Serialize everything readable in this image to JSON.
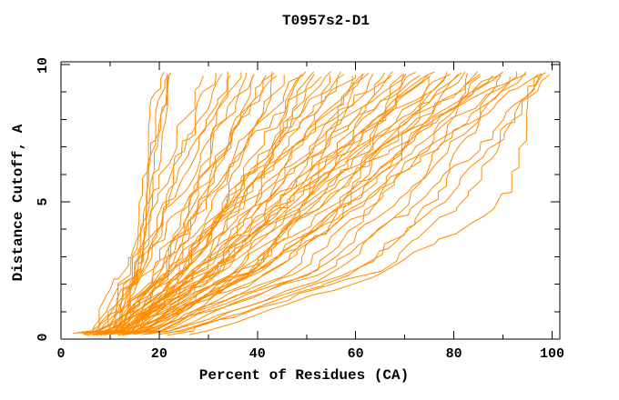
{
  "window": {
    "background": "#ffffff"
  },
  "chart_data": {
    "type": "line",
    "title": "T0957s2-D1",
    "xlabel": "Percent of Residues (CA)",
    "ylabel": "Distance Cutoff, A",
    "xlim": [
      0,
      100
    ],
    "ylim": [
      0,
      10
    ],
    "grid": "off",
    "legend": "none",
    "axis_color": "#000000",
    "line_color": "#ff8c00",
    "x_tick_labels": [
      "0",
      "20",
      "40",
      "60",
      "80",
      "100"
    ],
    "x_major_ticks": [
      0,
      20,
      40,
      60,
      80,
      100
    ],
    "x_minor_ticks": [
      10,
      30,
      50,
      70,
      90
    ],
    "y_tick_labels": [
      "0",
      "5",
      "10"
    ],
    "y_major_ticks": [
      0,
      5,
      10
    ],
    "y_minor_ticks": [
      1,
      2,
      3,
      4,
      6,
      7,
      8,
      9
    ],
    "series_description": "One monotone curve per predicted model: percent of CA residues (x) fitting under each distance cutoff in Angstroms (y). Each curve is listed as x-percent sampled at anchor cutoffs plus a jitter seed.",
    "curve_anchor_y": [
      0.3,
      2.5,
      5.0,
      7.5,
      9.7
    ],
    "curves": [
      [
        10.5,
        14,
        16,
        18,
        20,
        11
      ],
      [
        11,
        14.5,
        16.5,
        18.5,
        20.6,
        12
      ],
      [
        11.5,
        15,
        17,
        19,
        21.2,
        13
      ],
      [
        12,
        15.5,
        17.5,
        19.6,
        21.9,
        14
      ],
      [
        12.5,
        16,
        18.2,
        20.3,
        22.6,
        15
      ],
      [
        7,
        12.1,
        17.4,
        23.6,
        30,
        21
      ],
      [
        9,
        15.6,
        21.1,
        26.2,
        31,
        22
      ],
      [
        8,
        13.5,
        19.3,
        26,
        33,
        23
      ],
      [
        11,
        21.4,
        26.6,
        30.8,
        34,
        24
      ],
      [
        6,
        14.7,
        22,
        28.6,
        35,
        25
      ],
      [
        10,
        15.7,
        21.7,
        28.7,
        36,
        26
      ],
      [
        12,
        19.8,
        26.3,
        32.3,
        38,
        27
      ],
      [
        8,
        22,
        29.1,
        34.7,
        39,
        28
      ],
      [
        9,
        15.8,
        22.9,
        31.3,
        40,
        29
      ],
      [
        13,
        21.4,
        28.4,
        34.8,
        41,
        30
      ],
      [
        7,
        17.8,
        26.8,
        35.1,
        43,
        31
      ],
      [
        10,
        25.3,
        33.1,
        39.2,
        44,
        32
      ],
      [
        8,
        16.1,
        24.7,
        34.6,
        45,
        33
      ],
      [
        12,
        22.2,
        30.7,
        38.5,
        46,
        34
      ],
      [
        9,
        30.5,
        39.4,
        44.1,
        48,
        35
      ],
      [
        11,
        19.4,
        28.1,
        38.4,
        49,
        36
      ],
      [
        14,
        24.8,
        33.8,
        42.1,
        50,
        37
      ],
      [
        8,
        27.4,
        37.2,
        45,
        51,
        38
      ],
      [
        10,
        19.2,
        28.9,
        40.2,
        52,
        39
      ],
      [
        13,
        25,
        35,
        44.2,
        53,
        40
      ],
      [
        9,
        22.8,
        34.3,
        44.9,
        55,
        41
      ],
      [
        12,
        31.8,
        41.9,
        49.8,
        56,
        42
      ],
      [
        15,
        24.2,
        33.9,
        45.2,
        57,
        43
      ],
      [
        10,
        24.4,
        36.4,
        47.4,
        58,
        44
      ],
      [
        16,
        39.7,
        49.5,
        54.7,
        59,
        45
      ],
      [
        11,
        21.8,
        33.1,
        46.3,
        60,
        46
      ],
      [
        13,
        27.4,
        39.4,
        50.4,
        61,
        47
      ],
      [
        9,
        32.9,
        45,
        54.6,
        62,
        48
      ],
      [
        14,
        24.8,
        36.1,
        49.3,
        63,
        49
      ],
      [
        12,
        27.9,
        41.2,
        53.3,
        65,
        50
      ],
      [
        17,
        39.1,
        50.3,
        59.1,
        66,
        51
      ],
      [
        10,
        22.5,
        35.7,
        51,
        67,
        52
      ],
      [
        15,
        30.9,
        44.2,
        56.3,
        68,
        53
      ],
      [
        20,
        47,
        58.2,
        64.1,
        69,
        54
      ],
      [
        12,
        24.8,
        38.1,
        53.8,
        70,
        55
      ],
      [
        16,
        32.5,
        46.3,
        58.9,
        71,
        56
      ],
      [
        11,
        38.5,
        52.5,
        63.5,
        72,
        57
      ],
      [
        14,
        27,
        40.6,
        56.5,
        73,
        58
      ],
      [
        18,
        34.8,
        48.8,
        61.7,
        74,
        59
      ],
      [
        13,
        31.6,
        47.1,
        61.4,
        75,
        60
      ],
      [
        22,
        51.7,
        64.1,
        70.6,
        76,
        61
      ],
      [
        15,
        28.6,
        42.9,
        59.6,
        77,
        62
      ],
      [
        12,
        41.7,
        56.9,
        68.8,
        78,
        63
      ],
      [
        17,
        35.6,
        51.1,
        65.4,
        79,
        64
      ],
      [
        14,
        28.5,
        43.7,
        61.5,
        80,
        65
      ],
      [
        19,
        37.6,
        53.1,
        67.4,
        81,
        66
      ],
      [
        13,
        44.1,
        59.9,
        72.3,
        82,
        67
      ],
      [
        16,
        30.7,
        46.2,
        64.2,
        83,
        68
      ],
      [
        24,
        57,
        70.8,
        78,
        84,
        69
      ],
      [
        15,
        36,
        53.5,
        69.6,
        85,
        70
      ],
      [
        18,
        48.6,
        64.2,
        76.5,
        86,
        71
      ],
      [
        12,
        28.5,
        45.8,
        66,
        87,
        72
      ],
      [
        20,
        40.4,
        57.4,
        73,
        88,
        73
      ],
      [
        16,
        37.9,
        56.2,
        72.9,
        89,
        74
      ],
      [
        26,
        61.2,
        75.9,
        83.6,
        90,
        75
      ],
      [
        14,
        30.9,
        48.7,
        69.4,
        91,
        76
      ],
      [
        19,
        51.9,
        68.6,
        81.8,
        92,
        77
      ],
      [
        17,
        39.8,
        58.8,
        76.3,
        93,
        78
      ],
      [
        15,
        32.4,
        50.6,
        71.9,
        94,
        79
      ],
      [
        21,
        43.2,
        61.7,
        78.7,
        95,
        80
      ],
      [
        30,
        66.8,
        90.5,
        94,
        96.5,
        81
      ],
      [
        18,
        54.5,
        73.1,
        87.9,
        99,
        82
      ],
      [
        25,
        64.9,
        81.5,
        90.2,
        97.5,
        83
      ],
      [
        16,
        40.6,
        61.1,
        80,
        98,
        84
      ],
      [
        22,
        60.8,
        77.8,
        90.2,
        99.5,
        85
      ]
    ]
  }
}
